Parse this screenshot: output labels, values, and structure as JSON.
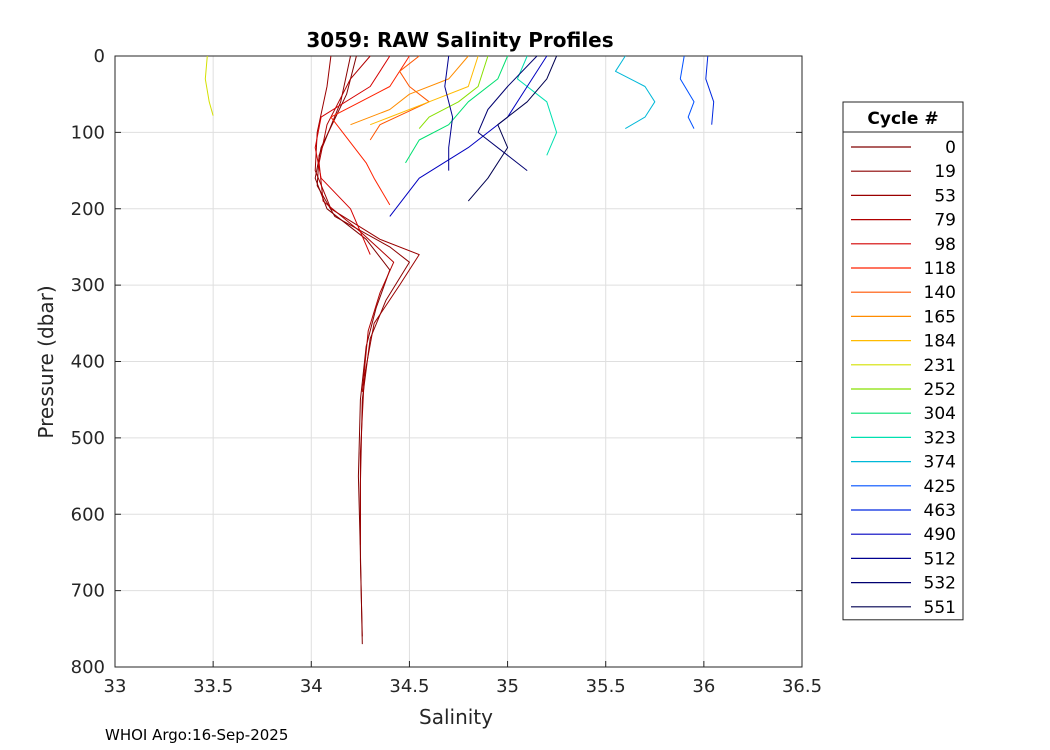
{
  "chart_data": {
    "type": "line",
    "title": "3059: RAW Salinity Profiles",
    "xlabel": "Salinity",
    "ylabel": "Pressure (dbar)",
    "xlim": [
      33,
      36.5
    ],
    "ylim": [
      0,
      800
    ],
    "y_reversed": true,
    "grid": true,
    "x_ticks": [
      33,
      33.5,
      34,
      34.5,
      35,
      35.5,
      36,
      36.5
    ],
    "y_ticks": [
      0,
      100,
      200,
      300,
      400,
      500,
      600,
      700,
      800
    ],
    "legend_title": "Cycle #",
    "legend_position": "right",
    "series": [
      {
        "name": "0",
        "color": "#800000",
        "points": [
          [
            34.23,
            0
          ],
          [
            34.18,
            50
          ],
          [
            34.05,
            120
          ],
          [
            34.02,
            160
          ],
          [
            34.08,
            200
          ],
          [
            34.28,
            240
          ],
          [
            34.4,
            280
          ],
          [
            34.33,
            330
          ],
          [
            34.28,
            380
          ],
          [
            34.25,
            450
          ],
          [
            34.24,
            550
          ],
          [
            34.25,
            650
          ],
          [
            34.26,
            770
          ]
        ]
      },
      {
        "name": "19",
        "color": "#8b0000",
        "points": [
          [
            34.2,
            0
          ],
          [
            34.15,
            60
          ],
          [
            34.04,
            130
          ],
          [
            34.03,
            170
          ],
          [
            34.12,
            210
          ],
          [
            34.4,
            250
          ],
          [
            34.5,
            270
          ],
          [
            34.38,
            320
          ],
          [
            34.3,
            370
          ],
          [
            34.26,
            450
          ],
          [
            34.25,
            560
          ],
          [
            34.25,
            660
          ],
          [
            34.26,
            760
          ]
        ]
      },
      {
        "name": "53",
        "color": "#9a0000",
        "points": [
          [
            34.1,
            0
          ],
          [
            34.08,
            40
          ],
          [
            34.03,
            100
          ],
          [
            34.02,
            150
          ],
          [
            34.1,
            200
          ],
          [
            34.35,
            240
          ],
          [
            34.55,
            260
          ],
          [
            34.45,
            300
          ],
          [
            34.32,
            350
          ],
          [
            34.27,
            420
          ],
          [
            34.25,
            520
          ],
          [
            34.25,
            640
          ]
        ]
      },
      {
        "name": "79",
        "color": "#b00000",
        "points": [
          [
            34.3,
            0
          ],
          [
            34.2,
            30
          ],
          [
            34.08,
            90
          ],
          [
            34.04,
            140
          ],
          [
            34.06,
            190
          ],
          [
            34.25,
            230
          ],
          [
            34.42,
            270
          ],
          [
            34.35,
            310
          ],
          [
            34.29,
            360
          ],
          [
            34.26,
            440
          ]
        ]
      },
      {
        "name": "98",
        "color": "#d40000",
        "points": [
          [
            34.4,
            0
          ],
          [
            34.3,
            40
          ],
          [
            34.05,
            80
          ],
          [
            34.02,
            120
          ],
          [
            34.05,
            160
          ],
          [
            34.2,
            200
          ],
          [
            34.3,
            260
          ]
        ]
      },
      {
        "name": "118",
        "color": "#ff2200",
        "points": [
          [
            34.5,
            0
          ],
          [
            34.4,
            40
          ],
          [
            34.25,
            60
          ],
          [
            34.1,
            80
          ],
          [
            34.28,
            140
          ],
          [
            34.32,
            160
          ],
          [
            34.4,
            195
          ]
        ]
      },
      {
        "name": "140",
        "color": "#ff5500",
        "points": [
          [
            34.55,
            0
          ],
          [
            34.45,
            20
          ],
          [
            34.5,
            40
          ],
          [
            34.6,
            60
          ],
          [
            34.35,
            90
          ],
          [
            34.3,
            110
          ]
        ]
      },
      {
        "name": "165",
        "color": "#ff8c00",
        "points": [
          [
            34.8,
            0
          ],
          [
            34.7,
            30
          ],
          [
            34.5,
            50
          ],
          [
            34.4,
            70
          ],
          [
            34.2,
            90
          ]
        ]
      },
      {
        "name": "184",
        "color": "#ffbb00",
        "points": [
          [
            34.85,
            0
          ],
          [
            34.8,
            40
          ],
          [
            34.6,
            60
          ],
          [
            34.4,
            80
          ],
          [
            34.3,
            90
          ]
        ]
      },
      {
        "name": "231",
        "color": "#d4e000",
        "points": [
          [
            33.47,
            0
          ],
          [
            33.46,
            30
          ],
          [
            33.48,
            60
          ],
          [
            33.5,
            78
          ]
        ]
      },
      {
        "name": "252",
        "color": "#88e000",
        "points": [
          [
            34.9,
            0
          ],
          [
            34.85,
            40
          ],
          [
            34.75,
            60
          ],
          [
            34.6,
            80
          ],
          [
            34.55,
            95
          ]
        ]
      },
      {
        "name": "304",
        "color": "#00e070",
        "points": [
          [
            35.0,
            0
          ],
          [
            34.95,
            30
          ],
          [
            34.8,
            60
          ],
          [
            34.7,
            90
          ],
          [
            34.55,
            110
          ],
          [
            34.48,
            140
          ]
        ]
      },
      {
        "name": "323",
        "color": "#00e0b0",
        "points": [
          [
            35.1,
            0
          ],
          [
            35.05,
            30
          ],
          [
            35.2,
            60
          ],
          [
            35.25,
            100
          ],
          [
            35.2,
            130
          ]
        ]
      },
      {
        "name": "374",
        "color": "#00b8d8",
        "points": [
          [
            35.6,
            0
          ],
          [
            35.55,
            20
          ],
          [
            35.7,
            40
          ],
          [
            35.75,
            60
          ],
          [
            35.7,
            80
          ],
          [
            35.6,
            95
          ]
        ]
      },
      {
        "name": "425",
        "color": "#0050ff",
        "points": [
          [
            35.9,
            0
          ],
          [
            35.88,
            30
          ],
          [
            35.95,
            60
          ],
          [
            35.92,
            80
          ],
          [
            35.95,
            95
          ]
        ]
      },
      {
        "name": "463",
        "color": "#0028e0",
        "points": [
          [
            36.02,
            0
          ],
          [
            36.01,
            30
          ],
          [
            36.05,
            60
          ],
          [
            36.04,
            90
          ]
        ]
      },
      {
        "name": "490",
        "color": "#0000c0",
        "points": [
          [
            35.2,
            0
          ],
          [
            35.1,
            40
          ],
          [
            35.0,
            80
          ],
          [
            34.8,
            120
          ],
          [
            34.55,
            160
          ],
          [
            34.4,
            210
          ]
        ]
      },
      {
        "name": "512",
        "color": "#000090",
        "points": [
          [
            34.7,
            0
          ],
          [
            34.68,
            40
          ],
          [
            34.72,
            80
          ],
          [
            34.7,
            120
          ],
          [
            34.7,
            150
          ]
        ]
      },
      {
        "name": "532",
        "color": "#000070",
        "points": [
          [
            35.15,
            0
          ],
          [
            35.0,
            40
          ],
          [
            34.9,
            70
          ],
          [
            34.85,
            100
          ],
          [
            35.0,
            130
          ],
          [
            35.1,
            150
          ]
        ]
      },
      {
        "name": "551",
        "color": "#000050",
        "points": [
          [
            35.25,
            0
          ],
          [
            35.2,
            30
          ],
          [
            35.1,
            60
          ],
          [
            34.95,
            90
          ],
          [
            35.0,
            120
          ],
          [
            34.9,
            160
          ],
          [
            34.8,
            190
          ]
        ]
      }
    ]
  },
  "footer": "WHOI Argo:16-Sep-2025"
}
